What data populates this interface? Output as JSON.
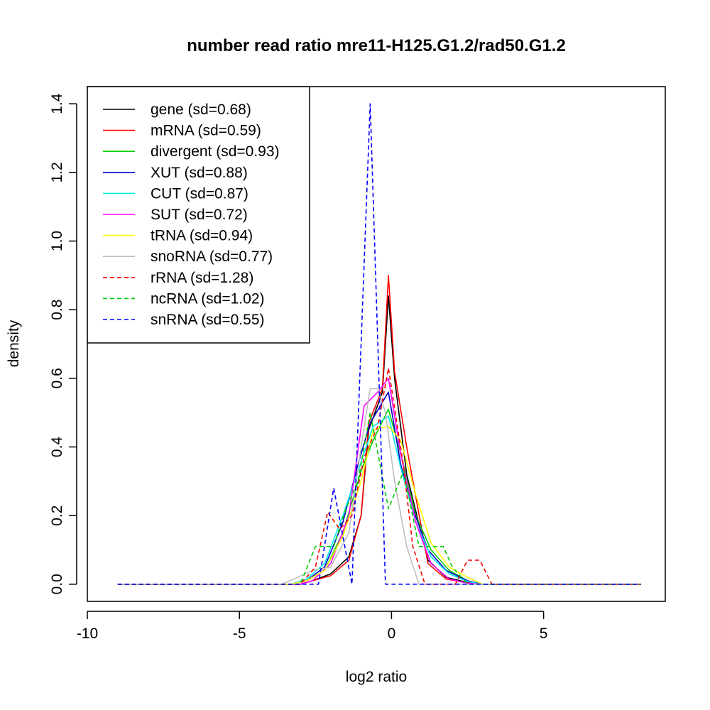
{
  "chart_data": {
    "type": "line",
    "title": "number read ratio mre11-H125.G1.2/rad50.G1.2",
    "xlabel": "log2 ratio",
    "ylabel": "density",
    "xlim": [
      -10,
      9
    ],
    "ylim": [
      -0.05,
      1.45
    ],
    "xticks": [
      {
        "value": -10,
        "label": "-10"
      },
      {
        "value": -5,
        "label": "-5"
      },
      {
        "value": 0,
        "label": "0"
      },
      {
        "value": 5,
        "label": "5"
      }
    ],
    "yticks": [
      {
        "value": 0.0,
        "label": "0.0"
      },
      {
        "value": 0.2,
        "label": "0.2"
      },
      {
        "value": 0.4,
        "label": "0.4"
      },
      {
        "value": 0.6,
        "label": "0.6"
      },
      {
        "value": 0.8,
        "label": "0.8"
      },
      {
        "value": 1.0,
        "label": "1.0"
      },
      {
        "value": 1.2,
        "label": "1.2"
      },
      {
        "value": 1.4,
        "label": "1.4"
      }
    ],
    "legend_position": "top-left",
    "series": [
      {
        "name": "gene (sd=0.68)",
        "color": "#000000",
        "dash": "solid",
        "points": [
          [
            -9.0,
            0.0
          ],
          [
            -3.0,
            0.0
          ],
          [
            -2.6,
            0.01
          ],
          [
            -2.0,
            0.03
          ],
          [
            -1.4,
            0.08
          ],
          [
            -1.0,
            0.2
          ],
          [
            -0.75,
            0.45
          ],
          [
            -0.3,
            0.56
          ],
          [
            -0.1,
            0.84
          ],
          [
            0.1,
            0.6
          ],
          [
            0.5,
            0.32
          ],
          [
            1.2,
            0.07
          ],
          [
            1.8,
            0.02
          ],
          [
            2.5,
            0.005
          ],
          [
            3.0,
            0.0
          ],
          [
            8.2,
            0.0
          ]
        ]
      },
      {
        "name": "mRNA (sd=0.59)",
        "color": "#ff0000",
        "dash": "solid",
        "points": [
          [
            -9.0,
            0.0
          ],
          [
            -3.0,
            0.0
          ],
          [
            -2.6,
            0.01
          ],
          [
            -2.0,
            0.025
          ],
          [
            -1.4,
            0.07
          ],
          [
            -1.0,
            0.2
          ],
          [
            -0.75,
            0.47
          ],
          [
            -0.3,
            0.57
          ],
          [
            -0.1,
            0.9
          ],
          [
            0.1,
            0.62
          ],
          [
            0.5,
            0.4
          ],
          [
            1.2,
            0.06
          ],
          [
            1.8,
            0.015
          ],
          [
            2.5,
            0.004
          ],
          [
            3.0,
            0.0
          ],
          [
            8.2,
            0.0
          ]
        ]
      },
      {
        "name": "divergent (sd=0.93)",
        "color": "#00cd00",
        "dash": "solid",
        "points": [
          [
            -9.0,
            0.0
          ],
          [
            -3.3,
            0.0
          ],
          [
            -2.8,
            0.01
          ],
          [
            -2.2,
            0.04
          ],
          [
            -1.6,
            0.15
          ],
          [
            -1.0,
            0.33
          ],
          [
            -0.6,
            0.42
          ],
          [
            -0.1,
            0.51
          ],
          [
            0.3,
            0.38
          ],
          [
            0.8,
            0.2
          ],
          [
            1.3,
            0.1
          ],
          [
            1.9,
            0.04
          ],
          [
            2.5,
            0.01
          ],
          [
            3.0,
            0.0
          ],
          [
            8.2,
            0.0
          ]
        ]
      },
      {
        "name": "XUT (sd=0.88)",
        "color": "#0000cd",
        "dash": "solid",
        "points": [
          [
            -9.0,
            0.0
          ],
          [
            -3.3,
            0.0
          ],
          [
            -2.8,
            0.01
          ],
          [
            -2.2,
            0.05
          ],
          [
            -1.6,
            0.18
          ],
          [
            -1.1,
            0.35
          ],
          [
            -0.7,
            0.47
          ],
          [
            -0.1,
            0.56
          ],
          [
            0.3,
            0.35
          ],
          [
            0.7,
            0.22
          ],
          [
            1.2,
            0.1
          ],
          [
            1.8,
            0.04
          ],
          [
            2.5,
            0.01
          ],
          [
            3.0,
            0.0
          ],
          [
            8.2,
            0.0
          ]
        ]
      },
      {
        "name": "CUT (sd=0.87)",
        "color": "#00eeee",
        "dash": "solid",
        "points": [
          [
            -9.0,
            0.0
          ],
          [
            -3.3,
            0.0
          ],
          [
            -2.8,
            0.015
          ],
          [
            -2.2,
            0.06
          ],
          [
            -1.6,
            0.2
          ],
          [
            -1.1,
            0.33
          ],
          [
            -0.6,
            0.46
          ],
          [
            -0.1,
            0.49
          ],
          [
            0.3,
            0.34
          ],
          [
            0.8,
            0.18
          ],
          [
            1.3,
            0.08
          ],
          [
            1.9,
            0.03
          ],
          [
            2.5,
            0.008
          ],
          [
            3.0,
            0.0
          ],
          [
            8.2,
            0.0
          ]
        ]
      },
      {
        "name": "SUT (sd=0.72)",
        "color": "#ff00ff",
        "dash": "solid",
        "points": [
          [
            -9.0,
            0.0
          ],
          [
            -3.0,
            0.0
          ],
          [
            -2.6,
            0.01
          ],
          [
            -2.0,
            0.06
          ],
          [
            -1.4,
            0.2
          ],
          [
            -0.9,
            0.52
          ],
          [
            -0.45,
            0.56
          ],
          [
            -0.1,
            0.6
          ],
          [
            0.3,
            0.38
          ],
          [
            0.8,
            0.18
          ],
          [
            1.3,
            0.06
          ],
          [
            1.9,
            0.015
          ],
          [
            2.5,
            0.003
          ],
          [
            3.0,
            0.0
          ],
          [
            8.2,
            0.0
          ]
        ]
      },
      {
        "name": "tRNA (sd=0.94)",
        "color": "#ffff00",
        "dash": "solid",
        "points": [
          [
            -9.0,
            0.0
          ],
          [
            -3.3,
            0.0
          ],
          [
            -2.8,
            0.01
          ],
          [
            -2.2,
            0.04
          ],
          [
            -1.6,
            0.14
          ],
          [
            -1.0,
            0.3
          ],
          [
            -0.6,
            0.45
          ],
          [
            -0.1,
            0.46
          ],
          [
            0.3,
            0.42
          ],
          [
            0.8,
            0.26
          ],
          [
            1.3,
            0.12
          ],
          [
            1.9,
            0.05
          ],
          [
            2.5,
            0.02
          ],
          [
            3.0,
            0.0
          ],
          [
            8.2,
            0.0
          ]
        ]
      },
      {
        "name": "snoRNA (sd=0.77)",
        "color": "#bebebe",
        "dash": "solid",
        "points": [
          [
            -9.0,
            0.0
          ],
          [
            -3.6,
            0.0
          ],
          [
            -3.1,
            0.02
          ],
          [
            -2.6,
            0.04
          ],
          [
            -2.0,
            0.05
          ],
          [
            -1.4,
            0.15
          ],
          [
            -1.0,
            0.4
          ],
          [
            -0.7,
            0.57
          ],
          [
            -0.45,
            0.57
          ],
          [
            -0.2,
            0.5
          ],
          [
            0.1,
            0.3
          ],
          [
            0.5,
            0.11
          ],
          [
            0.9,
            0.0
          ],
          [
            8.2,
            0.0
          ]
        ]
      },
      {
        "name": "rRNA (sd=1.28)",
        "color": "#ff0000",
        "dash": "dashed",
        "points": [
          [
            -9.0,
            0.0
          ],
          [
            -3.0,
            0.0
          ],
          [
            -2.5,
            0.05
          ],
          [
            -2.1,
            0.21
          ],
          [
            -1.7,
            0.16
          ],
          [
            -1.3,
            0.2
          ],
          [
            -0.9,
            0.37
          ],
          [
            -0.45,
            0.46
          ],
          [
            -0.1,
            0.63
          ],
          [
            0.4,
            0.34
          ],
          [
            0.7,
            0.11
          ],
          [
            1.1,
            0.0
          ],
          [
            2.1,
            0.0
          ],
          [
            2.5,
            0.07
          ],
          [
            2.9,
            0.07
          ],
          [
            3.3,
            0.0
          ],
          [
            8.2,
            0.0
          ]
        ]
      },
      {
        "name": "ncRNA (sd=1.02)",
        "color": "#00cd00",
        "dash": "dashed",
        "points": [
          [
            -9.0,
            0.0
          ],
          [
            -3.0,
            0.0
          ],
          [
            -2.5,
            0.11
          ],
          [
            -1.9,
            0.11
          ],
          [
            -1.5,
            0.22
          ],
          [
            -1.1,
            0.3
          ],
          [
            -0.7,
            0.5
          ],
          [
            -0.1,
            0.22
          ],
          [
            0.4,
            0.33
          ],
          [
            0.9,
            0.11
          ],
          [
            1.7,
            0.11
          ],
          [
            2.0,
            0.05
          ],
          [
            2.5,
            0.0
          ],
          [
            8.2,
            0.0
          ]
        ]
      },
      {
        "name": "snRNA (sd=0.55)",
        "color": "#0000ff",
        "dash": "dashed",
        "points": [
          [
            -9.0,
            0.0
          ],
          [
            -2.4,
            0.0
          ],
          [
            -1.9,
            0.28
          ],
          [
            -1.3,
            0.0
          ],
          [
            -0.7,
            1.4
          ],
          [
            -0.2,
            0.0
          ],
          [
            8.2,
            0.0
          ]
        ]
      }
    ]
  }
}
